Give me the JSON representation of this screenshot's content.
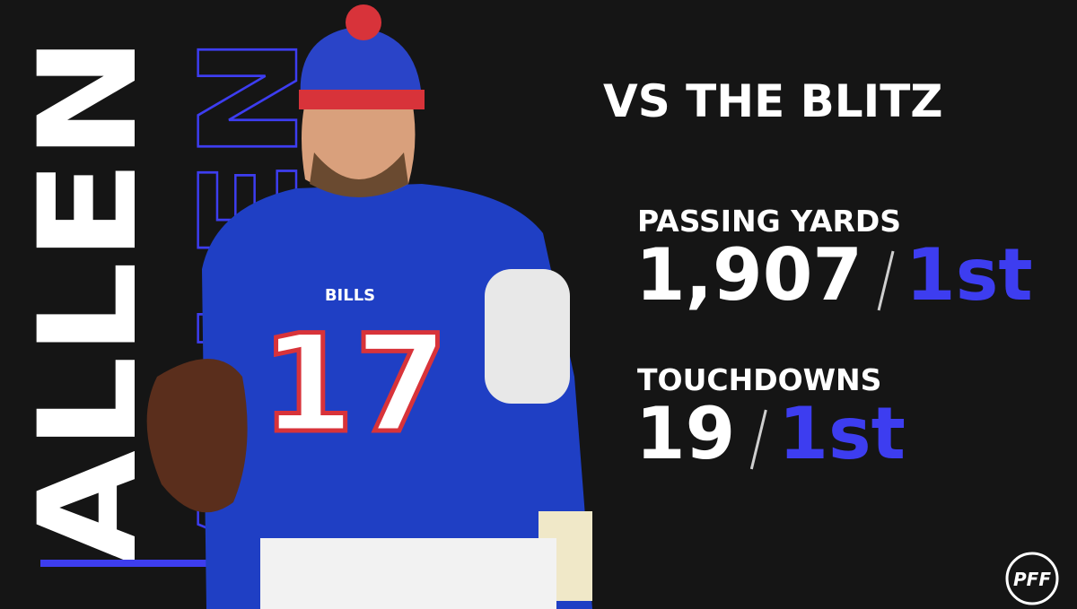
{
  "name": "ALLEN",
  "title": "VS THE BLITZ",
  "stats": [
    {
      "label": "PASSING YARDS",
      "value": "1,907",
      "rank": "1st"
    },
    {
      "label": "TOUCHDOWNS",
      "value": "19",
      "rank": "1st"
    }
  ],
  "photo": {
    "jersey_number": "17",
    "jersey_team": "BILLS"
  },
  "logo": "PFF"
}
